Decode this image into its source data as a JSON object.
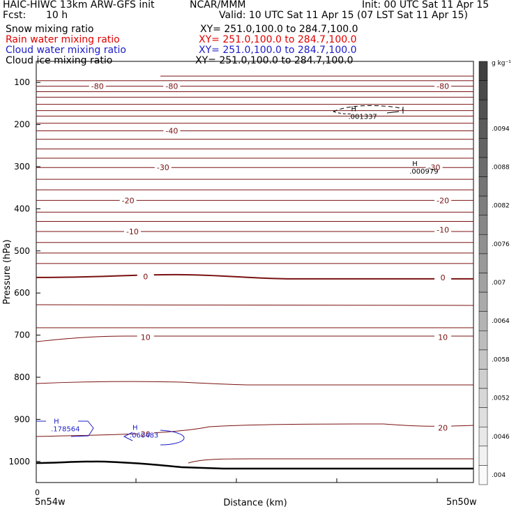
{
  "header": {
    "model": "HAIC-HIWC 13km ARW-GFS init",
    "org": "NCAR/MMM",
    "init": "Init: 00 UTC Sat 11 Apr 15",
    "fcst_label": "Fcst:",
    "fcst_value": "10 h",
    "valid": "Valid: 10 UTC Sat 11 Apr 15 (07 LST Sat 11 Apr 15)",
    "fields": [
      {
        "name": "Snow mixing ratio",
        "xy": "XY= 251.0,100.0 to 284.7,100.0",
        "color": "#000000"
      },
      {
        "name": "Rain water mixing ratio",
        "xy": "XY= 251.0,100.0 to 284.7,100.0",
        "color": "#e00000"
      },
      {
        "name": "Cloud water mixing ratio",
        "xy": "XY= 251.0,100.0 to 284.7,100.0",
        "color": "#1c1cc8"
      },
      {
        "name": "Cloud ice mixing ratio",
        "xy": "XY= 251.0,100.0 to 284.7,100.0",
        "color": "#000000"
      }
    ]
  },
  "chart_data": {
    "type": "contour",
    "ylabel": "Pressure (hPa)",
    "xlabel": "Distance (km)",
    "x_start_tick": "0",
    "x_left_label": "5n54w",
    "x_right_label": "5n50w",
    "y_ticks": [
      100,
      200,
      300,
      400,
      500,
      600,
      700,
      800,
      900,
      1000
    ],
    "ylim": [
      1050,
      50
    ],
    "temperature_contours": {
      "color": "#7a1010",
      "labels": [
        {
          "text": "-80",
          "p": 109,
          "d": 0.14
        },
        {
          "text": "-80",
          "p": 109,
          "d": 0.31
        },
        {
          "text": "-80",
          "p": 109,
          "d": 0.93
        },
        {
          "text": "-40",
          "p": 215,
          "d": 0.31
        },
        {
          "text": "-30",
          "p": 302,
          "d": 0.29
        },
        {
          "text": "-30",
          "p": 302,
          "d": 0.91
        },
        {
          "text": "-20",
          "p": 380,
          "d": 0.21
        },
        {
          "text": "-20",
          "p": 380,
          "d": 0.93
        },
        {
          "text": "-10",
          "p": 454,
          "d": 0.22
        },
        {
          "text": "-10",
          "p": 450,
          "d": 0.93
        },
        {
          "text": "0",
          "p": 561,
          "d": 0.25
        },
        {
          "text": "0",
          "p": 563,
          "d": 0.93
        },
        {
          "text": "10",
          "p": 705,
          "d": 0.25
        },
        {
          "text": "10",
          "p": 705,
          "d": 0.93
        },
        {
          "text": "20",
          "p": 935,
          "d": 0.25
        },
        {
          "text": "20",
          "p": 920,
          "d": 0.93
        }
      ]
    },
    "maxima": [
      {
        "label": "H",
        "value": ".001337",
        "field": "Cloud ice mixing ratio",
        "p": 178,
        "d": 0.72
      },
      {
        "label": "H",
        "value": ".000979",
        "field": "Cloud ice mixing ratio",
        "p": 308,
        "d": 0.86
      },
      {
        "label": "H",
        "value": ".178564",
        "field": "Cloud water mixing ratio",
        "p": 920,
        "d": 0.04
      },
      {
        "label": "H",
        "value": ".060483",
        "field": "Cloud water mixing ratio",
        "p": 935,
        "d": 0.22
      }
    ],
    "colorbar": {
      "unit": "g kg⁻¹",
      "ticks": [
        ".0094",
        ".0088",
        ".0082",
        ".0076",
        ".007",
        ".0064",
        ".0058",
        ".0052",
        ".0046",
        ".004"
      ]
    }
  }
}
